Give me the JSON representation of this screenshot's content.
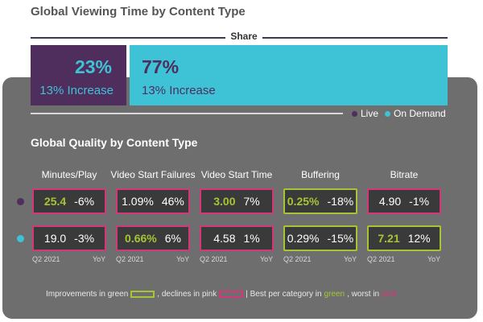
{
  "title": "Global Viewing Time by Content Type",
  "colors": {
    "live": "#4f2d5d",
    "on_demand": "#3ec3d6",
    "best": "#a5c536",
    "worst": "#d2377a",
    "panel": "#6e6e6e"
  },
  "share": {
    "label": "Share",
    "live": {
      "pct": "23%",
      "sub": "13% Increase"
    },
    "on_demand": {
      "pct": "77%",
      "sub": "13% Increase"
    }
  },
  "legend": {
    "live": "Live",
    "on_demand": "On Demand"
  },
  "quality": {
    "title": "Global Quality by Content Type",
    "columns": [
      "Minutes/Play",
      "Video Start Failures",
      "Video Start Time",
      "Buffering",
      "Bitrate"
    ],
    "period_label": "Q2 2021",
    "yoy_label": "YoY"
  },
  "footnote": {
    "part1": "Improvements in green",
    "part2": ", declines in pink",
    "part3": "| Best per category in",
    "green_word": "green",
    "part4": ", worst in",
    "pink_word": "pink"
  },
  "chart_data": [
    {
      "type": "bar",
      "title": "Share",
      "categories": [
        "Live",
        "On Demand"
      ],
      "values": [
        23,
        77
      ],
      "unit": "%",
      "annotations": [
        "13% Increase",
        "13% Increase"
      ]
    },
    {
      "type": "table",
      "title": "Global Quality by Content Type",
      "columns": [
        "Minutes/Play",
        "Video Start Failures",
        "Video Start Time",
        "Buffering",
        "Bitrate"
      ],
      "rows": [
        {
          "series": "Live",
          "cells": [
            {
              "value": "25.4",
              "yoy": "-6%",
              "trend": "decline",
              "rank": "best"
            },
            {
              "value": "1.09%",
              "yoy": "46%",
              "trend": "decline",
              "rank": "worst"
            },
            {
              "value": "3.00",
              "yoy": "7%",
              "trend": "decline",
              "rank": "best"
            },
            {
              "value": "0.25%",
              "yoy": "-18%",
              "trend": "improvement",
              "rank": "best"
            },
            {
              "value": "4.90",
              "yoy": "-1%",
              "trend": "decline",
              "rank": "worst"
            }
          ]
        },
        {
          "series": "On Demand",
          "cells": [
            {
              "value": "19.0",
              "yoy": "-3%",
              "trend": "decline",
              "rank": "worst"
            },
            {
              "value": "0.66%",
              "yoy": "6%",
              "trend": "decline",
              "rank": "best"
            },
            {
              "value": "4.58",
              "yoy": "1%",
              "trend": "decline",
              "rank": "worst"
            },
            {
              "value": "0.29%",
              "yoy": "-15%",
              "trend": "improvement",
              "rank": "worst"
            },
            {
              "value": "7.21",
              "yoy": "12%",
              "trend": "improvement",
              "rank": "best"
            }
          ]
        }
      ]
    }
  ]
}
